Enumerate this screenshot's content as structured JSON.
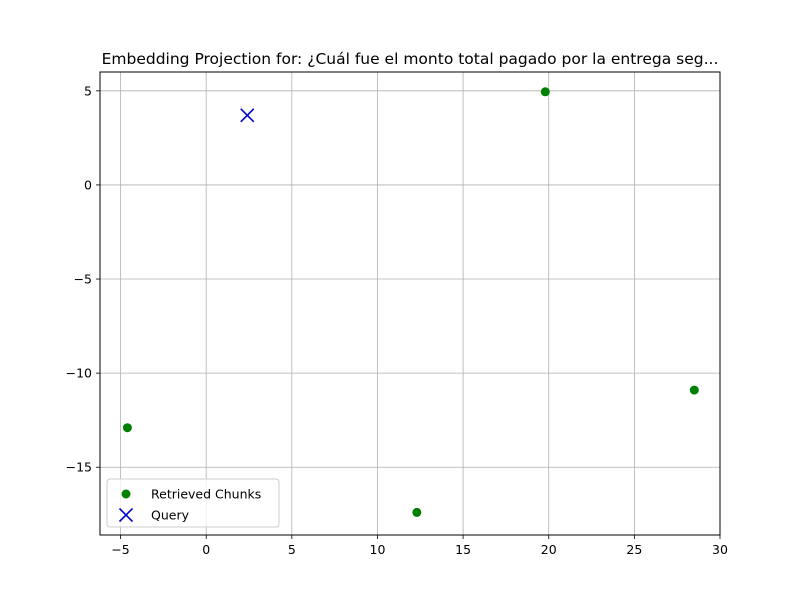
{
  "chart_data": {
    "type": "scatter",
    "title": "Embedding Projection for: ¿Cuál fue el monto total pagado por la entrega seg...",
    "xlabel": "",
    "ylabel": "",
    "xlim": [
      -6.2,
      30.0
    ],
    "ylim": [
      -18.6,
      6.0
    ],
    "xticks": [
      -5,
      0,
      5,
      10,
      15,
      20,
      25,
      30
    ],
    "yticks": [
      5,
      0,
      -5,
      -10,
      -15
    ],
    "xtick_labels": [
      "−5",
      "0",
      "5",
      "10",
      "15",
      "20",
      "25",
      "30"
    ],
    "ytick_labels": [
      "5",
      "0",
      "−5",
      "−10",
      "−15"
    ],
    "grid": true,
    "legend_position": "lower-left",
    "series": [
      {
        "name": "Retrieved Chunks",
        "marker": "circle",
        "color": "#008000",
        "points": [
          {
            "x": 19.8,
            "y": 4.95
          },
          {
            "x": 28.5,
            "y": -10.9
          },
          {
            "x": -4.6,
            "y": -12.9
          },
          {
            "x": 12.3,
            "y": -17.4
          }
        ]
      },
      {
        "name": "Query",
        "marker": "x",
        "color": "#0000cc",
        "points": [
          {
            "x": 2.4,
            "y": 3.7
          }
        ]
      }
    ]
  }
}
